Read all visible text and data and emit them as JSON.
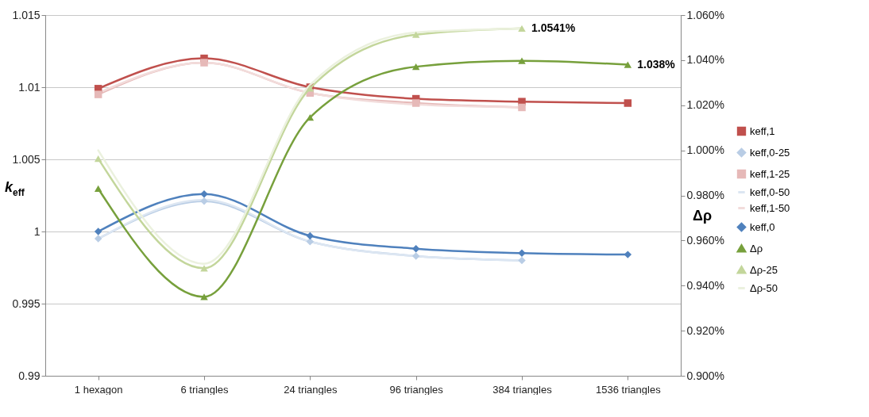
{
  "chart_data": {
    "type": "line",
    "ylabel": "k$_{eff}$",
    "y2label": "Δρ",
    "categories": [
      "1 hexagon",
      "6 triangles",
      "24 triangles",
      "96 triangles",
      "384 triangles",
      "1536 triangles"
    ],
    "series": [
      {
        "name": "keff,1",
        "color": "#c0504d",
        "marker": "square",
        "values": [
          1.0099,
          1.012,
          1.01,
          1.0092,
          1.009,
          1.0089
        ]
      },
      {
        "name": "keff,0-25",
        "color": "#b9cde5",
        "marker": "diamond",
        "values": [
          0.9995,
          1.0021,
          0.9993,
          0.9983,
          0.998,
          null
        ]
      },
      {
        "name": "keff,1-25",
        "color": "#e6b9b8",
        "marker": "square",
        "values": [
          1.0095,
          1.0117,
          1.0096,
          1.0089,
          1.0086,
          null
        ]
      },
      {
        "name": "keff,0-50",
        "color": "#dce6f2",
        "marker": "none",
        "values": [
          0.9995,
          1.0022,
          0.9993,
          0.9983,
          0.998,
          null
        ]
      },
      {
        "name": "keff,1-50",
        "color": "#f2dcdb",
        "marker": "none",
        "values": [
          1.0096,
          1.0117,
          1.0096,
          1.0088,
          1.0086,
          null
        ]
      },
      {
        "name": "keff,0",
        "color": "#4f81bd",
        "marker": "diamond",
        "values": [
          1.0,
          1.0026,
          0.9997,
          0.9988,
          0.9985,
          0.9984
        ]
      },
      {
        "name": "Δρ",
        "color": "#77a03c",
        "marker": "triangle",
        "axis": "y2",
        "values": [
          0.983,
          0.935,
          1.0146,
          1.0371,
          1.0397,
          1.038
        ],
        "value_labels": [
          null,
          null,
          null,
          null,
          null,
          "1.038%"
        ]
      },
      {
        "name": "Δρ-25",
        "color": "#c3d69b",
        "marker": "triangle",
        "axis": "y2",
        "values": [
          0.9963,
          0.9477,
          1.0275,
          1.0513,
          1.0541,
          null
        ],
        "value_labels": [
          null,
          null,
          null,
          null,
          "1.0541%",
          null
        ]
      },
      {
        "name": "Δρ-50",
        "color": "#ebf1de",
        "marker": "none",
        "axis": "y2",
        "values": [
          1.0,
          0.9497,
          1.029,
          1.0523,
          1.054,
          null
        ]
      }
    ],
    "ylim": [
      0.99,
      1.015
    ],
    "yticks": [
      0.99,
      0.995,
      1,
      1.005,
      1.01,
      1.015
    ],
    "y2lim": [
      0.9,
      1.06
    ],
    "y2ticks": [
      {
        "value": 0.9,
        "label": "0.900%"
      },
      {
        "value": 0.92,
        "label": "0.920%"
      },
      {
        "value": 0.94,
        "label": "0.940%"
      },
      {
        "value": 0.96,
        "label": "0.960%"
      },
      {
        "value": 0.98,
        "label": "0.980%"
      },
      {
        "value": 1.0,
        "label": "1.000%"
      },
      {
        "value": 1.02,
        "label": "1.020%"
      },
      {
        "value": 1.04,
        "label": "1.040%"
      },
      {
        "value": 1.06,
        "label": "1.060%"
      }
    ],
    "grid": "y",
    "legend": "right",
    "line_style": "solid"
  }
}
